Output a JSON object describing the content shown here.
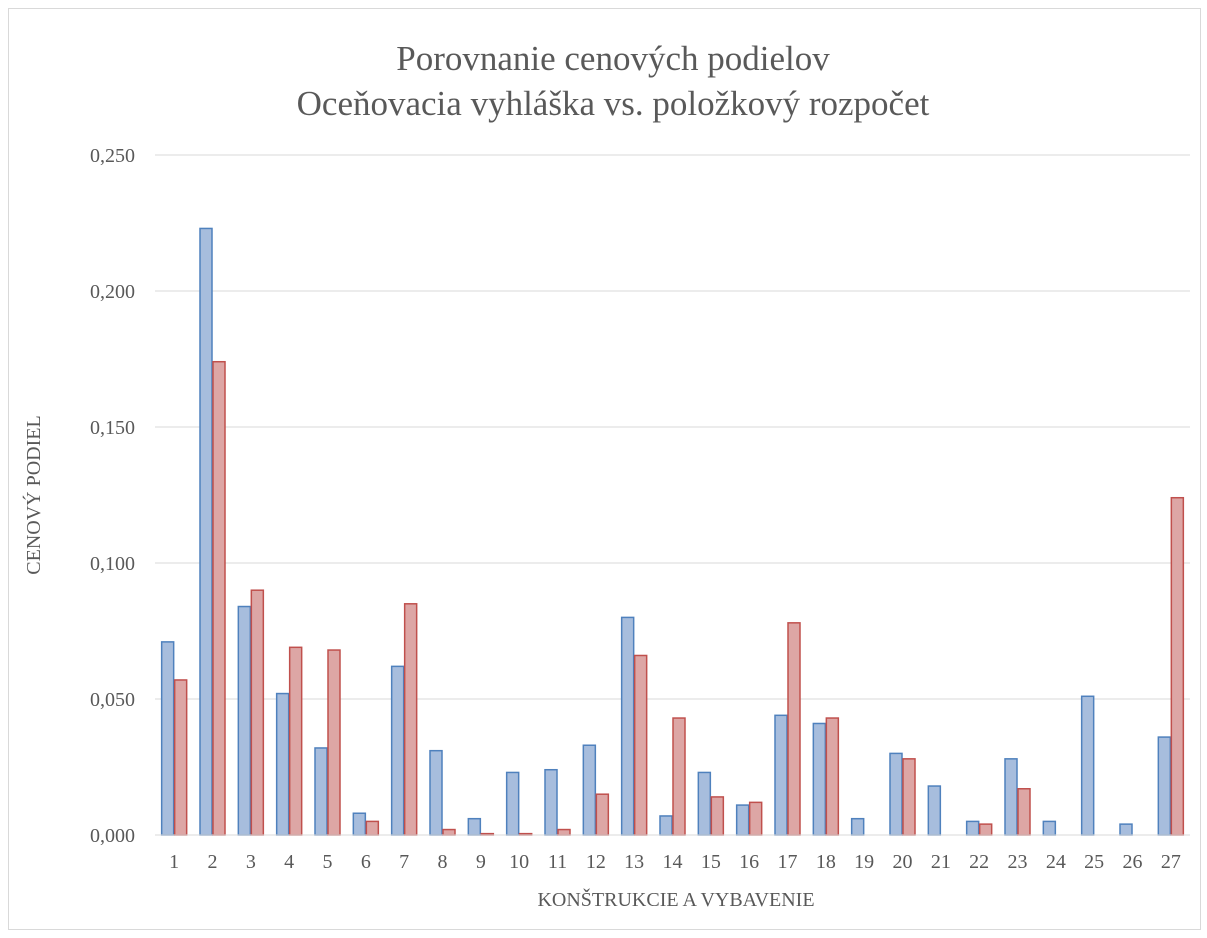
{
  "chart_data": {
    "type": "bar",
    "title": "Porovnanie cenových podielov",
    "subtitle": "Oceňovacia vyhláška vs. položkový rozpočet",
    "xlabel": "KONŠTRUKCIE A VYBAVENIE",
    "ylabel": "CENOVÝ PODIEL",
    "ylim": [
      0,
      0.25
    ],
    "yticks": [
      "0,000",
      "0,050",
      "0,100",
      "0,150",
      "0,200",
      "0,250"
    ],
    "grid": true,
    "categories": [
      "1",
      "2",
      "3",
      "4",
      "5",
      "6",
      "7",
      "8",
      "9",
      "10",
      "11",
      "12",
      "13",
      "14",
      "15",
      "16",
      "17",
      "18",
      "19",
      "20",
      "21",
      "22",
      "23",
      "24",
      "25",
      "26",
      "27"
    ],
    "series": [
      {
        "color": "#4f81bd",
        "fill": "#a7bddd",
        "values": [
          0.071,
          0.223,
          0.084,
          0.052,
          0.032,
          0.008,
          0.062,
          0.031,
          0.006,
          0.023,
          0.024,
          0.033,
          0.08,
          0.007,
          0.023,
          0.011,
          0.044,
          0.041,
          0.006,
          0.03,
          0.018,
          0.005,
          0.028,
          0.005,
          0.051,
          0.004,
          0.036
        ]
      },
      {
        "color": "#c0504d",
        "fill": "#dda6a5",
        "values": [
          0.057,
          0.174,
          0.09,
          0.069,
          0.068,
          0.005,
          0.085,
          0.002,
          0.0005,
          0.0005,
          0.002,
          0.015,
          0.066,
          0.043,
          0.014,
          0.012,
          0.078,
          0.043,
          0,
          0.028,
          0,
          0.004,
          0.017,
          0,
          0,
          0,
          0.124
        ]
      }
    ]
  }
}
